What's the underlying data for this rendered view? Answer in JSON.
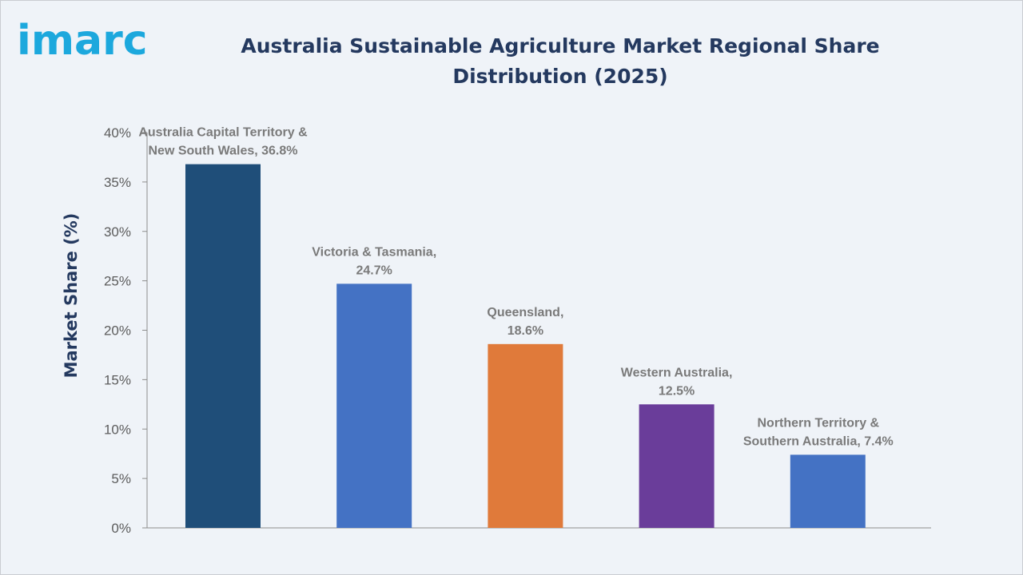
{
  "brand": {
    "logo_text": "imarc"
  },
  "chart_data": {
    "type": "bar",
    "title": "Australia Sustainable Agriculture Market Regional Share Distribution (2025)",
    "title_lines": [
      "Australia Sustainable Agriculture Market Regional Share",
      "Distribution (2025)"
    ],
    "xlabel": "",
    "ylabel": "Market Share (%)",
    "ylim": [
      0,
      40
    ],
    "yticks": [
      0,
      5,
      10,
      15,
      20,
      25,
      30,
      35,
      40
    ],
    "ytick_labels": [
      "0%",
      "5%",
      "10%",
      "15%",
      "20%",
      "25%",
      "30%",
      "35%",
      "40%"
    ],
    "grid": false,
    "categories": [
      "Australia Capital Territory & New South Wales",
      "Victoria & Tasmania",
      "Queensland",
      "Western Australia",
      "Northern Territory & Southern Australia"
    ],
    "values": [
      36.8,
      24.7,
      18.6,
      12.5,
      7.4
    ],
    "colors": [
      "#1f4e79",
      "#4472c4",
      "#e07a3a",
      "#6a3d9a",
      "#4472c4"
    ],
    "data_labels": [
      [
        "Australia Capital Territory &",
        "New South Wales, 36.8%"
      ],
      [
        "Victoria & Tasmania,",
        "24.7%"
      ],
      [
        "Queensland,",
        "18.6%"
      ],
      [
        "Western Australia,",
        "12.5%"
      ],
      [
        "Northern Territory &",
        "Southern Australia, 7.4%"
      ]
    ]
  }
}
